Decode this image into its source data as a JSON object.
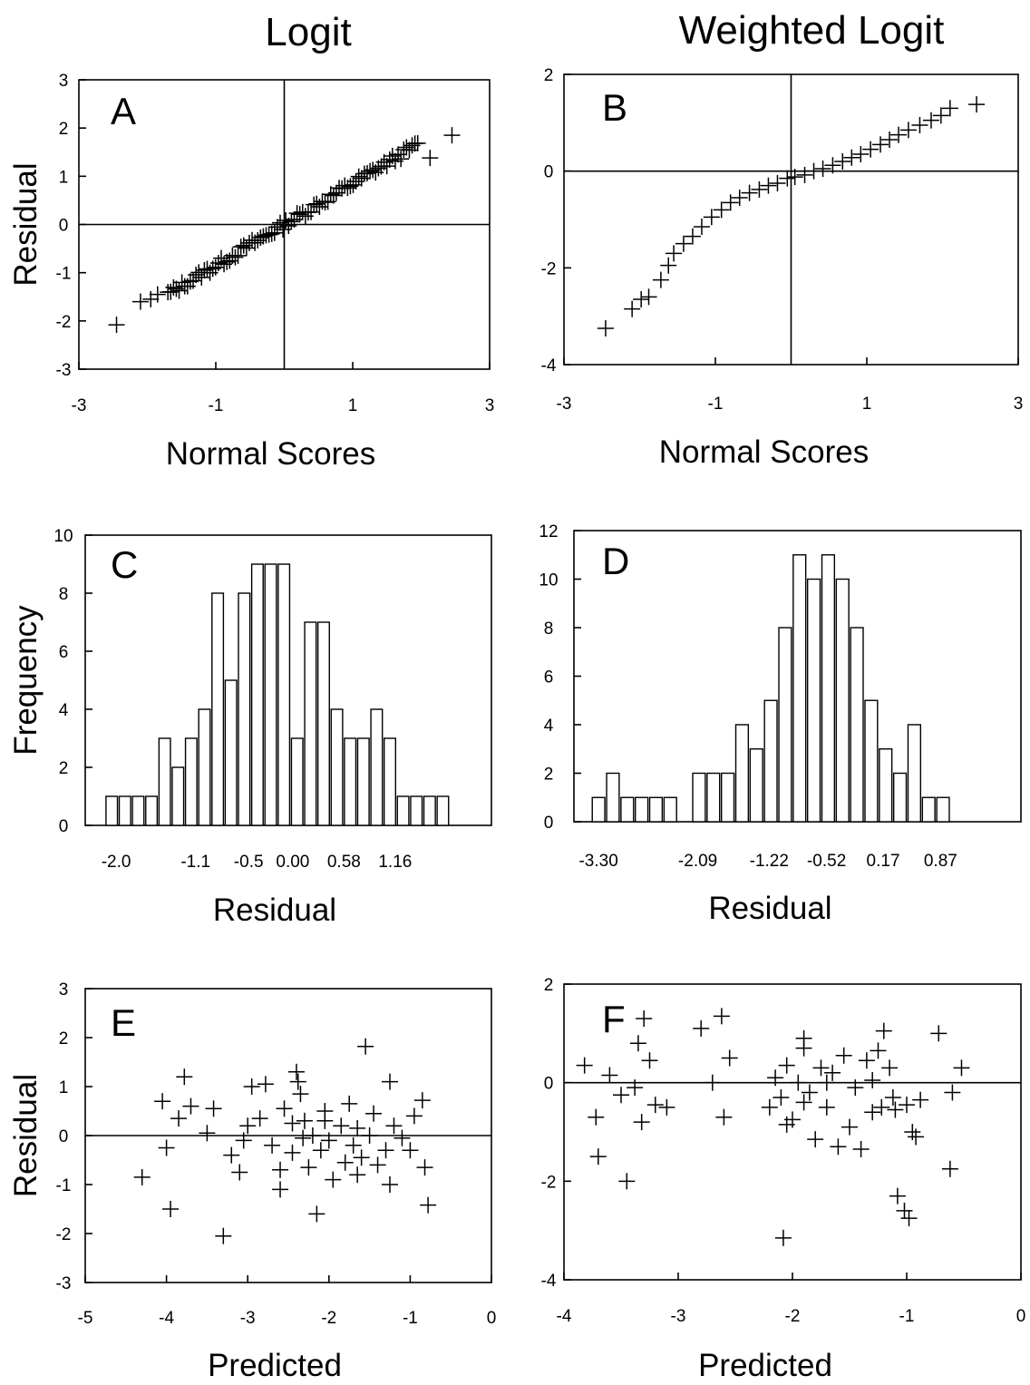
{
  "column_titles": [
    "Logit",
    "Weighted Logit"
  ],
  "chart_data": [
    {
      "id": "A",
      "type": "scatter",
      "marker": "plus",
      "xlabel": "Normal Scores",
      "ylabel": "Residual",
      "xlim": [
        -3,
        3
      ],
      "ylim": [
        -3,
        3
      ],
      "xticks": [
        -3,
        -1,
        1,
        3
      ],
      "xtick_labels": [
        "-3",
        "-1",
        "1",
        "3"
      ],
      "yticks": [
        -3,
        -2,
        -1,
        0,
        1,
        2,
        3
      ],
      "ytick_labels": [
        "-3",
        "-2",
        "-1",
        "0",
        "1",
        "2",
        "3"
      ],
      "hline": 0,
      "vline": 0,
      "qq": {
        "slope": 0.85,
        "intercept": 0.0
      },
      "points": [
        [
          -2.45,
          -2.08
        ],
        [
          -2.1,
          -1.6
        ],
        [
          -1.95,
          -1.55
        ],
        [
          -1.85,
          -1.45
        ],
        [
          2.13,
          1.38
        ],
        [
          2.45,
          1.85
        ]
      ]
    },
    {
      "id": "B",
      "type": "scatter",
      "marker": "plus",
      "xlabel": "Normal Scores",
      "ylabel": "",
      "xlim": [
        -3,
        3
      ],
      "ylim": [
        -4,
        2
      ],
      "xticks": [
        -3,
        -1,
        1,
        3
      ],
      "xtick_labels": [
        "-3",
        "-1",
        "1",
        "3"
      ],
      "yticks": [
        -4,
        -2,
        0,
        2
      ],
      "ytick_labels": [
        "-4",
        "-2",
        "0",
        "2"
      ],
      "hline": 0,
      "vline": 0,
      "points": [
        [
          -2.45,
          -3.25
        ],
        [
          -2.1,
          -2.85
        ],
        [
          -1.98,
          -2.65
        ],
        [
          -1.88,
          -2.6
        ],
        [
          -1.72,
          -2.25
        ],
        [
          -1.62,
          -1.95
        ],
        [
          -1.55,
          -1.7
        ],
        [
          -1.42,
          -1.5
        ],
        [
          -1.3,
          -1.35
        ],
        [
          -1.18,
          -1.15
        ],
        [
          -1.05,
          -0.95
        ],
        [
          -0.92,
          -0.8
        ],
        [
          -0.8,
          -0.65
        ],
        [
          -0.68,
          -0.55
        ],
        [
          -0.55,
          -0.45
        ],
        [
          -0.42,
          -0.38
        ],
        [
          -0.3,
          -0.3
        ],
        [
          -0.18,
          -0.25
        ],
        [
          -0.05,
          -0.15
        ],
        [
          0.05,
          -0.12
        ],
        [
          0.18,
          -0.08
        ],
        [
          0.3,
          0.0
        ],
        [
          0.42,
          0.05
        ],
        [
          0.55,
          0.12
        ],
        [
          0.68,
          0.2
        ],
        [
          0.8,
          0.28
        ],
        [
          0.92,
          0.35
        ],
        [
          1.05,
          0.45
        ],
        [
          1.18,
          0.55
        ],
        [
          1.3,
          0.65
        ],
        [
          1.42,
          0.75
        ],
        [
          1.55,
          0.85
        ],
        [
          1.7,
          0.95
        ],
        [
          1.85,
          1.05
        ],
        [
          1.98,
          1.15
        ],
        [
          2.1,
          1.3
        ],
        [
          2.45,
          1.38
        ]
      ]
    },
    {
      "id": "C",
      "type": "bar",
      "histogram": true,
      "xlabel": "Residual",
      "ylabel": "Frequency",
      "xlim": [
        -2.35,
        2.25
      ],
      "ylim": [
        0,
        10
      ],
      "yticks": [
        0,
        2,
        4,
        6,
        8,
        10
      ],
      "ytick_labels": [
        "0",
        "2",
        "4",
        "6",
        "8",
        "10"
      ],
      "xticks": [
        -2.0,
        -1.1,
        -0.5,
        0.0,
        0.58,
        1.16
      ],
      "xtick_labels": [
        "-2.0",
        "-1.1",
        "-0.5",
        "0.00",
        "0.58",
        "1.16"
      ],
      "bin_width": 0.15,
      "bins": [
        -2.05,
        -1.9,
        -1.75,
        -1.6,
        -1.45,
        -1.3,
        -1.15,
        -1.0,
        -0.85,
        -0.7,
        -0.55,
        -0.4,
        -0.25,
        -0.1,
        0.05,
        0.2,
        0.35,
        0.5,
        0.65,
        0.8,
        0.95,
        1.1,
        1.25,
        1.4,
        1.55,
        1.7
      ],
      "values": [
        1,
        1,
        1,
        1,
        3,
        2,
        3,
        4,
        8,
        5,
        8,
        9,
        9,
        9,
        3,
        7,
        7,
        4,
        3,
        3,
        4,
        3,
        1,
        1,
        1,
        1
      ]
    },
    {
      "id": "D",
      "type": "bar",
      "histogram": true,
      "xlabel": "Residual",
      "ylabel": "",
      "xlim": [
        -3.6,
        1.85
      ],
      "ylim": [
        0,
        12
      ],
      "yticks": [
        0,
        2,
        4,
        6,
        8,
        10,
        12
      ],
      "ytick_labels": [
        "0",
        "2",
        "4",
        "6",
        "8",
        "10",
        "12"
      ],
      "xticks": [
        -3.3,
        -2.09,
        -1.22,
        -0.52,
        0.17,
        0.87
      ],
      "xtick_labels": [
        "-3.30",
        "-2.09",
        "-1.22",
        "-0.52",
        "0.17",
        "0.87"
      ],
      "bin_width": 0.175,
      "bins": [
        -3.3,
        -3.125,
        -2.95,
        -2.775,
        -2.6,
        -2.425,
        -2.25,
        -2.075,
        -1.9,
        -1.725,
        -1.55,
        -1.375,
        -1.2,
        -1.025,
        -0.85,
        -0.675,
        -0.5,
        -0.325,
        -0.15,
        0.025,
        0.2,
        0.375,
        0.55,
        0.725,
        0.9,
        1.075,
        1.25,
        1.425,
        1.6
      ],
      "values": [
        1,
        2,
        1,
        1,
        1,
        1,
        0,
        2,
        2,
        2,
        4,
        3,
        5,
        8,
        11,
        10,
        11,
        10,
        8,
        5,
        3,
        2,
        4,
        1,
        1,
        0,
        0,
        0,
        0
      ]
    },
    {
      "id": "E",
      "type": "scatter",
      "marker": "plus",
      "xlabel": "Predicted",
      "ylabel": "Residual",
      "xlim": [
        -5,
        0
      ],
      "ylim": [
        -3,
        3
      ],
      "xticks": [
        -5,
        -4,
        -3,
        -2,
        -1,
        0
      ],
      "xtick_labels": [
        "-5",
        "-4",
        "-3",
        "-2",
        "-1",
        "0"
      ],
      "yticks": [
        -3,
        -2,
        -1,
        0,
        1,
        2,
        3
      ],
      "ytick_labels": [
        "-3",
        "-2",
        "-1",
        "0",
        "1",
        "2",
        "3"
      ],
      "hline": 0,
      "points": [
        [
          -4.3,
          -0.85
        ],
        [
          -4.05,
          0.7
        ],
        [
          -4.0,
          -0.25
        ],
        [
          -3.95,
          -1.5
        ],
        [
          -3.78,
          1.2
        ],
        [
          -3.85,
          0.35
        ],
        [
          -3.7,
          0.6
        ],
        [
          -3.5,
          0.05
        ],
        [
          -3.42,
          0.55
        ],
        [
          -3.3,
          -2.05
        ],
        [
          -3.2,
          -0.4
        ],
        [
          -3.1,
          -0.75
        ],
        [
          -3.05,
          -0.1
        ],
        [
          -2.95,
          1.0
        ],
        [
          -2.85,
          0.35
        ],
        [
          -2.78,
          1.05
        ],
        [
          -2.7,
          -0.2
        ],
        [
          -2.6,
          -0.7
        ],
        [
          -2.55,
          0.55
        ],
        [
          -2.45,
          -0.35
        ],
        [
          -2.4,
          1.3
        ],
        [
          -2.38,
          1.1
        ],
        [
          -2.35,
          0.85
        ],
        [
          -2.3,
          0.3
        ],
        [
          -2.25,
          -0.65
        ],
        [
          -2.2,
          0.0
        ],
        [
          -2.15,
          -1.6
        ],
        [
          -2.1,
          -0.3
        ],
        [
          -2.05,
          0.5
        ],
        [
          -2.0,
          -0.1
        ],
        [
          -1.95,
          -0.9
        ],
        [
          -1.85,
          0.2
        ],
        [
          -1.8,
          -0.55
        ],
        [
          -1.75,
          0.65
        ],
        [
          -1.7,
          -0.2
        ],
        [
          -1.65,
          0.15
        ],
        [
          -1.6,
          -0.45
        ],
        [
          -1.55,
          1.82
        ],
        [
          -1.5,
          0.0
        ],
        [
          -1.45,
          0.45
        ],
        [
          -1.4,
          -0.6
        ],
        [
          -1.3,
          -0.3
        ],
        [
          -1.25,
          1.1
        ],
        [
          -1.2,
          0.2
        ],
        [
          -1.1,
          -0.05
        ],
        [
          -1.0,
          -0.3
        ],
        [
          -0.95,
          0.4
        ],
        [
          -0.85,
          0.72
        ],
        [
          -0.82,
          -0.65
        ],
        [
          -0.78,
          -1.42
        ],
        [
          -2.32,
          -0.05
        ],
        [
          -2.6,
          -1.1
        ],
        [
          -3.0,
          0.2
        ],
        [
          -2.05,
          0.3
        ],
        [
          -1.65,
          -0.8
        ],
        [
          -2.45,
          0.25
        ],
        [
          -1.25,
          -1.0
        ]
      ]
    },
    {
      "id": "F",
      "type": "scatter",
      "marker": "plus",
      "xlabel": "Predicted",
      "ylabel": "",
      "xlim": [
        -4,
        0
      ],
      "ylim": [
        -4,
        2
      ],
      "xticks": [
        -4,
        -3,
        -2,
        -1,
        0
      ],
      "xtick_labels": [
        "-4",
        "-3",
        "-2",
        "-1",
        "0"
      ],
      "yticks": [
        -4,
        -2,
        0,
        2
      ],
      "ytick_labels": [
        "-4",
        "-2",
        "0",
        "2"
      ],
      "hline": 0,
      "points": [
        [
          -3.82,
          0.35
        ],
        [
          -3.72,
          -0.7
        ],
        [
          -3.7,
          -1.5
        ],
        [
          -3.6,
          0.15
        ],
        [
          -3.5,
          -0.25
        ],
        [
          -3.45,
          -2.0
        ],
        [
          -3.38,
          -0.1
        ],
        [
          -3.35,
          0.8
        ],
        [
          -3.3,
          1.3
        ],
        [
          -3.32,
          -0.8
        ],
        [
          -3.25,
          0.45
        ],
        [
          -3.2,
          -0.45
        ],
        [
          -3.1,
          -0.5
        ],
        [
          -2.8,
          1.1
        ],
        [
          -2.7,
          0.0
        ],
        [
          -2.62,
          1.35
        ],
        [
          -2.6,
          -0.7
        ],
        [
          -2.55,
          0.5
        ],
        [
          -2.2,
          -0.5
        ],
        [
          -2.1,
          -0.3
        ],
        [
          -2.08,
          -3.15
        ],
        [
          -2.05,
          0.35
        ],
        [
          -2.0,
          -0.75
        ],
        [
          -1.95,
          0.0
        ],
        [
          -1.9,
          0.7
        ],
        [
          -1.85,
          -0.2
        ],
        [
          -1.8,
          -1.15
        ],
        [
          -1.75,
          0.3
        ],
        [
          -1.7,
          -0.5
        ],
        [
          -1.65,
          0.2
        ],
        [
          -1.6,
          -1.3
        ],
        [
          -1.55,
          0.55
        ],
        [
          -1.5,
          -0.9
        ],
        [
          -1.45,
          -0.1
        ],
        [
          -1.4,
          -1.35
        ],
        [
          -1.35,
          0.45
        ],
        [
          -1.3,
          -0.6
        ],
        [
          -1.25,
          0.65
        ],
        [
          -1.22,
          -0.5
        ],
        [
          -1.2,
          1.05
        ],
        [
          -1.15,
          0.3
        ],
        [
          -1.12,
          -0.3
        ],
        [
          -1.1,
          -0.55
        ],
        [
          -1.08,
          -2.3
        ],
        [
          -1.02,
          -2.6
        ],
        [
          -1.0,
          -0.45
        ],
        [
          -0.98,
          -2.75
        ],
        [
          -0.95,
          -1.0
        ],
        [
          -0.92,
          -1.1
        ],
        [
          -0.88,
          -0.35
        ],
        [
          -0.72,
          1.0
        ],
        [
          -0.62,
          -1.75
        ],
        [
          -0.6,
          -0.2
        ],
        [
          -0.52,
          0.3
        ],
        [
          -1.9,
          0.9
        ],
        [
          -2.05,
          -0.85
        ],
        [
          -1.3,
          0.05
        ],
        [
          -2.15,
          0.1
        ],
        [
          -1.7,
          0.0
        ],
        [
          -1.9,
          -0.4
        ]
      ]
    }
  ]
}
